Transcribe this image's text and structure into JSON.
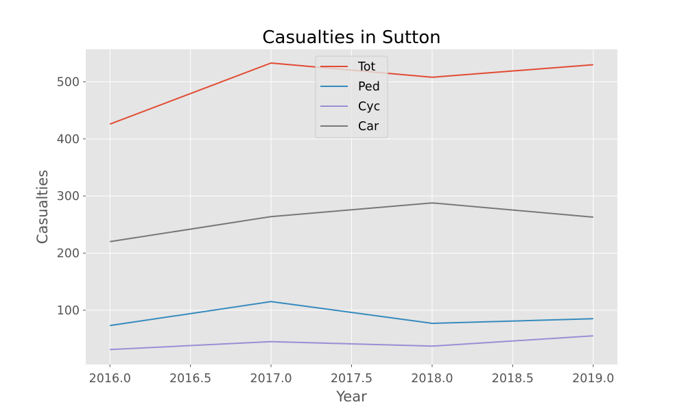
{
  "chart_data": {
    "type": "line",
    "title": "Casualties in Sutton",
    "xlabel": "Year",
    "ylabel": "Casualties",
    "x": [
      2016,
      2017,
      2018,
      2019
    ],
    "xlim": [
      2015.85,
      2019.15
    ],
    "ylim": [
      5,
      557
    ],
    "xticks": [
      "2016.0",
      "2016.5",
      "2017.0",
      "2017.5",
      "2018.0",
      "2018.5",
      "2019.0"
    ],
    "yticks": [
      "100",
      "200",
      "300",
      "400",
      "500"
    ],
    "grid": true,
    "legend_position": "upper center",
    "series": [
      {
        "name": "Tot",
        "color": "#E24A33",
        "values": [
          426,
          533,
          508,
          530
        ]
      },
      {
        "name": "Ped",
        "color": "#348ABD",
        "values": [
          73,
          115,
          77,
          85
        ]
      },
      {
        "name": "Cyc",
        "color": "#988ED5",
        "values": [
          31,
          45,
          37,
          55
        ]
      },
      {
        "name": "Car",
        "color": "#777777",
        "values": [
          220,
          264,
          288,
          263
        ]
      }
    ]
  }
}
